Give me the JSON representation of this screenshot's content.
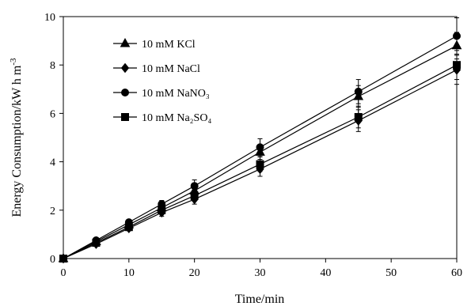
{
  "chart_data": {
    "type": "line",
    "xlabel": "Time/min",
    "ylabel_main": "Energy Consumption/kW h m",
    "ylabel_sup": "-3",
    "xlim": [
      0,
      60
    ],
    "ylim": [
      0,
      10
    ],
    "xticks": [
      0,
      10,
      20,
      30,
      40,
      50,
      60
    ],
    "yticks": [
      0,
      2,
      4,
      6,
      8,
      10
    ],
    "grid": false,
    "legend_position": "top-left",
    "series": [
      {
        "name": "10 mM KCl",
        "marker": "triangle",
        "x": [
          0,
          5,
          10,
          15,
          20,
          30,
          45,
          60
        ],
        "y": [
          0,
          0.7,
          1.4,
          2.1,
          2.8,
          4.4,
          6.7,
          8.8
        ],
        "err": [
          0,
          0.05,
          0.1,
          0.15,
          0.2,
          0.3,
          0.45,
          0.55
        ]
      },
      {
        "name": "10 mM NaCl",
        "marker": "diamond",
        "x": [
          0,
          5,
          10,
          15,
          20,
          30,
          45,
          60
        ],
        "y": [
          0,
          0.6,
          1.25,
          1.9,
          2.45,
          3.7,
          5.7,
          7.8
        ],
        "err": [
          0,
          0.05,
          0.1,
          0.15,
          0.2,
          0.3,
          0.45,
          0.6
        ]
      },
      {
        "name": "10 mM NaNO₃",
        "marker": "circle",
        "x": [
          0,
          5,
          10,
          15,
          20,
          30,
          45,
          60
        ],
        "y": [
          0,
          0.75,
          1.5,
          2.25,
          3.0,
          4.6,
          6.9,
          9.2
        ],
        "err": [
          0,
          0.05,
          0.1,
          0.15,
          0.25,
          0.35,
          0.5,
          0.75
        ]
      },
      {
        "name": "10 mM Na₂SO₄",
        "marker": "square",
        "x": [
          0,
          5,
          10,
          15,
          20,
          30,
          45,
          60
        ],
        "y": [
          0,
          0.65,
          1.3,
          2.0,
          2.6,
          3.9,
          5.85,
          8.0
        ],
        "err": [
          0,
          0.05,
          0.1,
          0.15,
          0.2,
          0.3,
          0.45,
          0.6
        ]
      }
    ]
  }
}
